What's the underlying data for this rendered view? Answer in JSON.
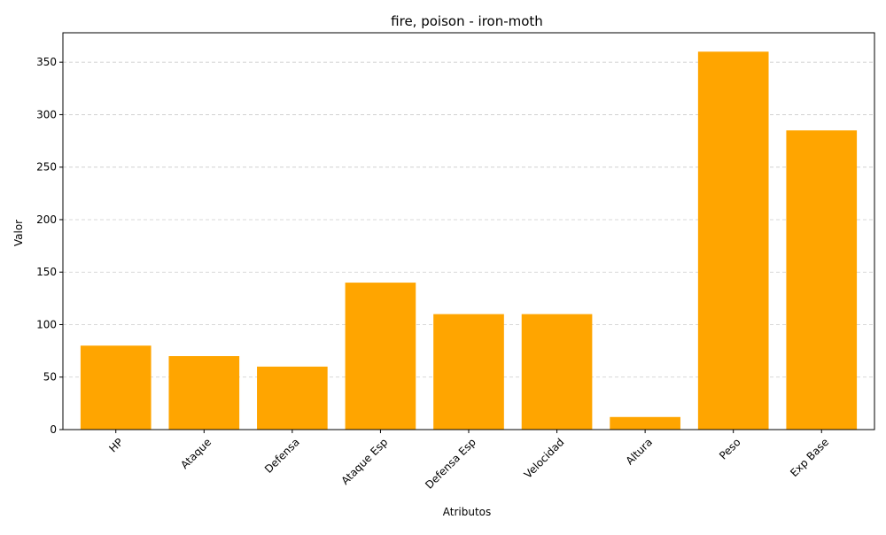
{
  "chart_data": {
    "type": "bar",
    "title": "fire, poison - iron-moth",
    "xlabel": "Atributos",
    "ylabel": "Valor",
    "categories": [
      "HP",
      "Ataque",
      "Defensa",
      "Ataque Esp",
      "Defensa Esp",
      "Velocidad",
      "Altura",
      "Peso",
      "Exp Base"
    ],
    "values": [
      80,
      70,
      60,
      140,
      110,
      110,
      12,
      360,
      285
    ],
    "ylim": [
      0,
      378
    ],
    "yticks": [
      0,
      50,
      100,
      150,
      200,
      250,
      300,
      350
    ],
    "grid": "y-dashed",
    "bar_color": "#FFA500",
    "grid_color": "#cccccc",
    "axis_color": "#000000",
    "tick_label_rotation_deg": 45
  }
}
